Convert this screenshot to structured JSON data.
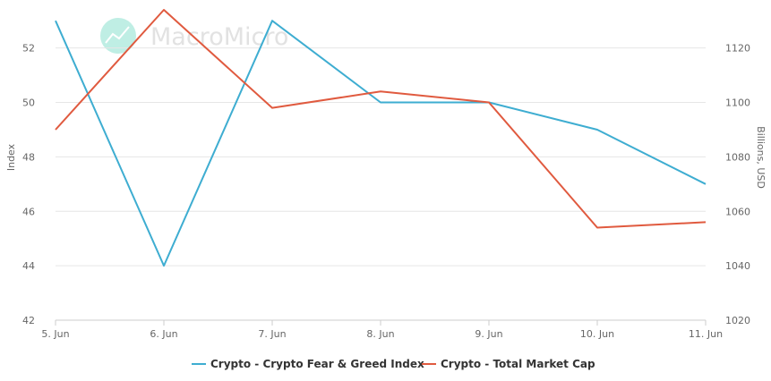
{
  "watermark": {
    "text": "MacroMicro"
  },
  "chart_data": {
    "type": "line",
    "categories": [
      "5. Jun",
      "6. Jun",
      "7. Jun",
      "8. Jun",
      "9. Jun",
      "10. Jun",
      "11. Jun"
    ],
    "series": [
      {
        "name": "Crypto - Crypto Fear & Greed Index",
        "axis": "left",
        "color": "#3eadd1",
        "values": [
          53,
          44,
          53,
          50,
          50,
          49,
          47
        ]
      },
      {
        "name": "Crypto - Total Market Cap",
        "axis": "right",
        "color": "#e05a3f",
        "values": [
          1090,
          1134,
          1098,
          1104,
          1100,
          1054,
          1056
        ]
      }
    ],
    "y_left": {
      "label": "Index",
      "min": 42,
      "max": 53.5,
      "ticks": [
        42,
        44,
        46,
        48,
        50,
        52
      ]
    },
    "y_right": {
      "label": "Billions, USD",
      "min": 1020,
      "max": 1135,
      "ticks": [
        1020,
        1040,
        1060,
        1080,
        1100,
        1120
      ]
    },
    "grid": true,
    "legend_position": "bottom-center"
  }
}
